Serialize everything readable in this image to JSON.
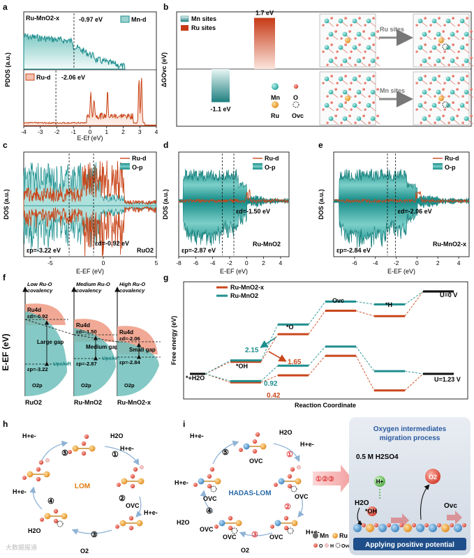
{
  "panels": {
    "a": "a",
    "b": "b",
    "c": "c",
    "d": "d",
    "e": "e",
    "f": "f",
    "g": "g",
    "h": "h",
    "i": "i"
  },
  "colors": {
    "mn": "#1e8e8e",
    "ru": "#c9471b",
    "ru_light": "#f3c1ad",
    "mn_light": "#9ad3cf"
  },
  "chart_data": [
    {
      "id": "a",
      "type": "area",
      "title_top": "Ru-MnO2-x",
      "legend_top": "Mn-d",
      "legend_bottom": "Ru-d",
      "center_top": "-0.97 eV",
      "center_bottom": "-2.06 eV",
      "xlabel": "E-Ef (eV)",
      "ylabel": "PDOS (a.u.)",
      "xlim": [
        -4,
        4
      ],
      "xticks": [
        "-4",
        "-3",
        "-2",
        "-1",
        "0",
        "1",
        "2",
        "3",
        "4"
      ],
      "center_top_value": -0.97,
      "center_bottom_value": -2.06,
      "ru_peaks": [
        {
          "x": 0.05,
          "h": 0.45
        },
        {
          "x": 0.25,
          "h": 0.35
        },
        {
          "x": 1.05,
          "h": 0.5
        },
        {
          "x": 2.95,
          "h": 0.9
        },
        {
          "x": 3.1,
          "h": 0.95
        }
      ]
    },
    {
      "id": "b",
      "type": "bar",
      "legend": [
        "Mn sites",
        "Ru sites"
      ],
      "ylabel": "ΔGOvc (eV)",
      "categories": [
        "Mn sites",
        "Ru sites"
      ],
      "values": [
        -1.1,
        1.7
      ],
      "value_labels": [
        "-1.1 eV",
        "1.7 eV"
      ],
      "ylim": [
        -1.6,
        2.0
      ],
      "arrows": [
        "Ru sites",
        "Mn sites"
      ],
      "atom_legend": {
        "mn": "Mn",
        "o": "O",
        "ru": "Ru",
        "ovc": "Ovc"
      }
    },
    {
      "id": "c",
      "type": "line",
      "legend": [
        "Ru-d",
        "O-p"
      ],
      "xlabel": "E-EF (eV)",
      "ylabel": "DOS (a.u.)",
      "material": "RuO2",
      "ep_label": "εp=-3.22 eV",
      "ed_label": "εd=-0.92 eV",
      "xlim": [
        -7.5,
        5
      ],
      "xticks": [
        "-5",
        "0",
        "5"
      ],
      "ep": -3.22,
      "ed": -0.92
    },
    {
      "id": "d",
      "type": "area",
      "legend": [
        "Ru-d",
        "O-p"
      ],
      "xlabel": "E-EF (eV)",
      "ylabel": "DOS (a.u.)",
      "material": "Ru-MnO2",
      "ep_label": "εp=-2.87 eV",
      "ed_label": "εd=-1.50 eV",
      "xlim": [
        -8,
        5
      ],
      "xticks": [
        "-8",
        "-6",
        "-4",
        "-2",
        "0",
        "2",
        "4"
      ],
      "ep": -2.87,
      "ed": -1.5
    },
    {
      "id": "e",
      "type": "area",
      "legend": [
        "Ru-d",
        "O-p"
      ],
      "xlabel": "E-EF (eV)",
      "ylabel": "DOS (a.u.)",
      "material": "Ru-MnO2-x",
      "ep_label": "εp=-2.84 eV",
      "ed_label": "εd=-2.06 eV",
      "xlim": [
        -8,
        5
      ],
      "xticks": [
        "-6",
        "-4",
        "-2",
        "0",
        "2",
        "4"
      ],
      "ep": -2.84,
      "ed": -2.06
    },
    {
      "id": "f",
      "type": "diagram",
      "ylabel": "E-EF (eV)",
      "columns": [
        {
          "title": "Low Ru-O covalency",
          "material": "RuO2",
          "ru": "Ru4d",
          "ed": "εd=-0.92",
          "ep": "εp=-3.22",
          "gap": "Large gap",
          "o": "O2p",
          "shift": "Upshift"
        },
        {
          "title": "Medium Ru-O covalency",
          "material": "Ru-MnO2",
          "ru": "Ru4d",
          "ed": "εd=-1.50",
          "ep": "εp=-2.87",
          "gap": "Medium gap",
          "o": "O2p",
          "shift": "Upshift"
        },
        {
          "title": "High Ru-O covalency",
          "material": "Ru-MnO2-x",
          "ru": "Ru4d",
          "ed": "εd=-2.06",
          "ep": "εp=-2.84",
          "gap": "Small gap",
          "o": "O2p",
          "shift": ""
        }
      ]
    },
    {
      "id": "g",
      "type": "line",
      "legend": [
        "Ru-MnO2-x",
        "Ru-MnO2"
      ],
      "ylabel": "Free energy (eV)",
      "xlabel": "Reaction Coordinate",
      "states": [
        "*+H2O",
        "*OH",
        "*O",
        "Ovc",
        "*H",
        ""
      ],
      "state_labels": {
        "s0": "*+H2O",
        "s1": "*OH",
        "s2": "*O",
        "s3": "Ovc",
        "s4": "*H"
      },
      "u0": "U=0 V",
      "u123": "U=1.23 V",
      "series": [
        {
          "name": "Ru-MnO2-x U=0",
          "values": [
            0,
            0.72,
            2.37,
            3.77,
            3.45,
            4.92
          ]
        },
        {
          "name": "Ru-MnO2 U=0",
          "values": [
            0,
            0.8,
            2.95,
            4.32,
            4.15,
            4.92
          ]
        },
        {
          "name": "Ru-MnO2-x U=1.23",
          "values": [
            0,
            -0.51,
            -0.09,
            1.08,
            -0.99,
            0
          ]
        },
        {
          "name": "Ru-MnO2 U=1.23",
          "values": [
            0,
            -0.43,
            0.49,
            1.63,
            0.16,
            0
          ]
        }
      ],
      "annotations": [
        "2.15",
        "1.65",
        "0.92",
        "0.42"
      ],
      "ylim": [
        -1.5,
        5.5
      ]
    }
  ],
  "h": {
    "center": "LOM",
    "steps": [
      "①",
      "②",
      "③",
      "④",
      "⑤"
    ],
    "labels": {
      "h2o_top": "H2O",
      "he_right": "H+e-",
      "he_right2": "H+e-",
      "ovc": "OVC",
      "o2": "O2",
      "he_left": "H+e-",
      "h2o_left": "H2O",
      "he_top": "H+e-"
    }
  },
  "i": {
    "center": "HADAS-LOM",
    "steps": [
      "①",
      "②",
      "③",
      "④",
      "⑤"
    ],
    "big_steps": "①②③",
    "labels": {
      "he_top": "H+e-",
      "h2o_top": "H2O",
      "he_right": "H+e-",
      "ovc1": "OVC",
      "ovc2": "OVC",
      "he_right2": "H+e-",
      "o2": "O2",
      "ovc3": "OVC",
      "he_left": "H+e-",
      "h2o_left": "H2O",
      "ovc4": "OVC",
      "ovc5": "OVC",
      "ovc6": "OVC"
    },
    "legend": {
      "mn": "Mn",
      "ru": "Ru",
      "o": "O",
      "h": "H",
      "ovc": "Ovc"
    },
    "box_title_1": "Oxygen intermediates",
    "box_title_2": "migration process",
    "acid": "0.5 M H2SO4",
    "hplus": "H+",
    "o2": "O2",
    "h2o": "H2O",
    "oh": "*OH",
    "ovc": "Ovc",
    "banner": "Applying positive potential"
  },
  "watermark": "大数据报道"
}
